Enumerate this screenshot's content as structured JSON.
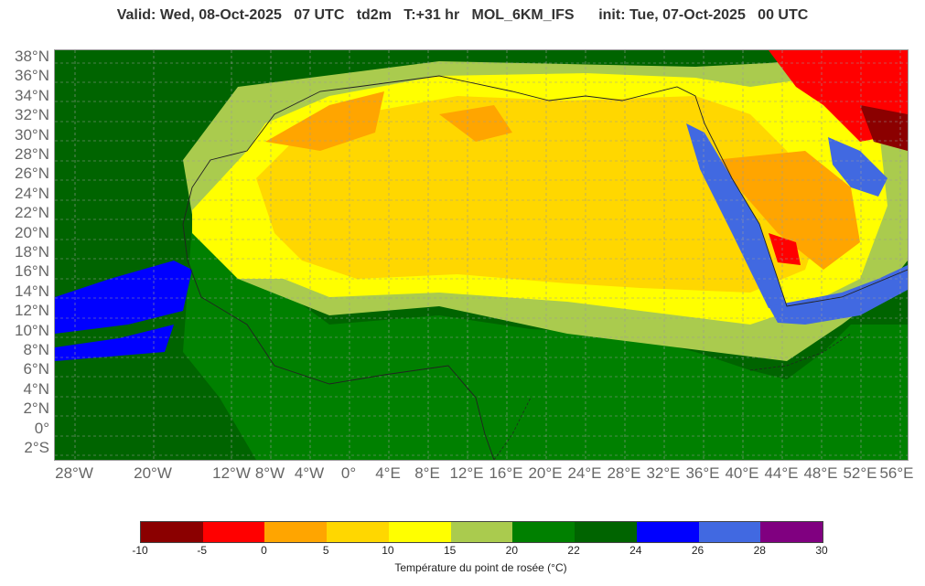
{
  "header": {
    "title": "Valid: Wed, 08-Oct-2025   07 UTC   td2m   T:+31 hr   MOL_6KM_IFS      init: Tue, 07-Oct-2025   00 UTC"
  },
  "map": {
    "lat_labels": [
      "38°N",
      "36°N",
      "34°N",
      "32°N",
      "30°N",
      "28°N",
      "26°N",
      "24°N",
      "22°N",
      "20°N",
      "18°N",
      "16°N",
      "14°N",
      "12°N",
      "10°N",
      "8°N",
      "6°N",
      "4°N",
      "2°N",
      "0°",
      "2°S"
    ],
    "lon_labels": [
      "28°W",
      "20°W",
      "12°W",
      "8°W",
      "4°W",
      "0°",
      "4°E",
      "8°E",
      "12°E",
      "16°E",
      "20°E",
      "24°E",
      "28°E",
      "32°E",
      "36°E",
      "40°E",
      "44°E",
      "48°E",
      "52°E",
      "56°E"
    ],
    "colors": {
      "c_lt_m5": "#8b0000",
      "c_m5_0": "#ff0000",
      "c_0_5": "#ffa500",
      "c_5_10": "#ffd700",
      "c_10_15": "#ffff00",
      "c_15_20": "#aacb4e",
      "c_20_22": "#008000",
      "c_22_24": "#006400",
      "c_24_26": "#0000ff",
      "c_26_28": "#4169e1",
      "c_28_30": "#800080"
    }
  },
  "legend": {
    "ticks": [
      "-10",
      "-5",
      "0",
      "5",
      "10",
      "15",
      "20",
      "22",
      "24",
      "26",
      "28",
      "30"
    ],
    "colors": [
      "#8b0000",
      "#ff0000",
      "#ffa500",
      "#ffd700",
      "#ffff00",
      "#aacb4e",
      "#008000",
      "#006400",
      "#0000ff",
      "#4169e1",
      "#800080"
    ],
    "label": "Température du point de rosée (°C)"
  }
}
